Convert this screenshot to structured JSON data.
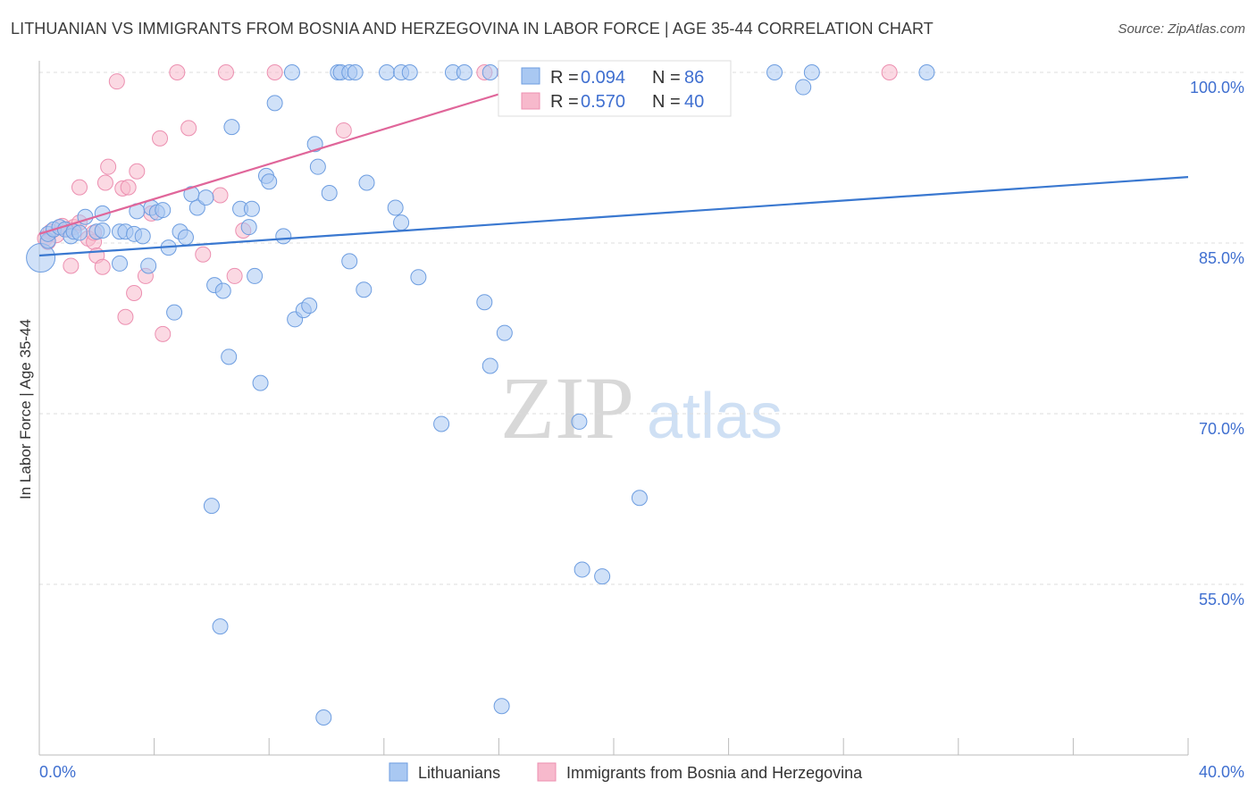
{
  "title": "LITHUANIAN VS IMMIGRANTS FROM BOSNIA AND HERZEGOVINA IN LABOR FORCE | AGE 35-44 CORRELATION CHART",
  "source": "Source: ZipAtlas.com",
  "watermark": {
    "zip": "ZIP",
    "atlas": "atlas"
  },
  "legend": {
    "r_label": "R =",
    "n_label": "N =",
    "rows": [
      {
        "r": "0.094",
        "n": "86",
        "color": "#a9c8f2"
      },
      {
        "r": "0.570",
        "n": "40",
        "color": "#f7b9cc"
      }
    ]
  },
  "bottom_legend": [
    "Lithuanians",
    "Immigrants from Bosnia and Herzegovina"
  ],
  "chart_data": {
    "type": "scatter",
    "title": "LITHUANIAN VS IMMIGRANTS FROM BOSNIA AND HERZEGOVINA IN LABOR FORCE | AGE 35-44 CORRELATION CHART",
    "xlabel": "",
    "ylabel": "In Labor Force | Age 35-44",
    "xlim": [
      0,
      40
    ],
    "ylim": [
      42,
      101.5
    ],
    "x_tick_labels": [
      "0.0%",
      "40.0%"
    ],
    "y_ticks": [
      55,
      70,
      85,
      100
    ],
    "y_tick_labels": [
      "55.0%",
      "70.0%",
      "85.0%",
      "100.0%"
    ],
    "grid": true,
    "series": [
      {
        "name": "Lithuanians",
        "color": "#3a78d0",
        "fill": "#a9c8f2",
        "trend": {
          "x": [
            0,
            40
          ],
          "y": [
            83.9,
            90.8
          ]
        },
        "points": [
          [
            0.05,
            83.7
          ],
          [
            0.3,
            85.2
          ],
          [
            0.3,
            85.8
          ],
          [
            0.5,
            86.2
          ],
          [
            0.7,
            86.4
          ],
          [
            0.9,
            86.2
          ],
          [
            1.1,
            85.6
          ],
          [
            1.2,
            86.0
          ],
          [
            1.4,
            85.9
          ],
          [
            2.0,
            86.0
          ],
          [
            1.6,
            87.3
          ],
          [
            2.2,
            86.1
          ],
          [
            2.2,
            87.6
          ],
          [
            2.8,
            86.0
          ],
          [
            3.0,
            86.0
          ],
          [
            3.3,
            85.8
          ],
          [
            3.4,
            87.8
          ],
          [
            2.8,
            83.2
          ],
          [
            3.6,
            85.6
          ],
          [
            3.8,
            83.0
          ],
          [
            3.9,
            88.1
          ],
          [
            4.1,
            87.7
          ],
          [
            4.3,
            87.9
          ],
          [
            4.5,
            84.6
          ],
          [
            4.7,
            78.9
          ],
          [
            4.9,
            86.0
          ],
          [
            5.1,
            85.5
          ],
          [
            5.3,
            89.3
          ],
          [
            5.5,
            88.1
          ],
          [
            5.8,
            89.0
          ],
          [
            6.0,
            61.9
          ],
          [
            6.3,
            51.3
          ],
          [
            6.1,
            81.3
          ],
          [
            6.4,
            80.8
          ],
          [
            6.6,
            75.0
          ],
          [
            6.7,
            95.2
          ],
          [
            7.0,
            88.0
          ],
          [
            7.3,
            86.4
          ],
          [
            7.4,
            88.0
          ],
          [
            7.5,
            82.1
          ],
          [
            7.7,
            72.7
          ],
          [
            7.9,
            90.9
          ],
          [
            8.0,
            90.4
          ],
          [
            8.2,
            97.3
          ],
          [
            8.5,
            85.6
          ],
          [
            8.8,
            100.0
          ],
          [
            8.9,
            78.3
          ],
          [
            9.2,
            79.1
          ],
          [
            9.4,
            79.5
          ],
          [
            9.6,
            93.7
          ],
          [
            9.7,
            91.7
          ],
          [
            10.1,
            89.4
          ],
          [
            9.9,
            43.3
          ],
          [
            10.4,
            100.0
          ],
          [
            10.5,
            100.0
          ],
          [
            10.8,
            100.0
          ],
          [
            11.0,
            100.0
          ],
          [
            10.8,
            83.4
          ],
          [
            11.3,
            80.9
          ],
          [
            11.4,
            90.3
          ],
          [
            12.1,
            100.0
          ],
          [
            12.4,
            88.1
          ],
          [
            12.6,
            86.8
          ],
          [
            12.6,
            100.0
          ],
          [
            12.9,
            100.0
          ],
          [
            13.2,
            82.0
          ],
          [
            14.0,
            69.1
          ],
          [
            14.4,
            100.0
          ],
          [
            14.8,
            100.0
          ],
          [
            15.5,
            79.8
          ],
          [
            15.7,
            100.0
          ],
          [
            15.7,
            74.2
          ],
          [
            16.1,
            44.3
          ],
          [
            16.2,
            77.1
          ],
          [
            16.6,
            96.9
          ],
          [
            18.8,
            69.3
          ],
          [
            18.9,
            56.3
          ],
          [
            19.6,
            55.7
          ],
          [
            20.9,
            62.6
          ],
          [
            22.6,
            100.0
          ],
          [
            25.6,
            100.0
          ],
          [
            26.6,
            98.7
          ],
          [
            26.9,
            100.0
          ],
          [
            30.9,
            100.0
          ],
          [
            18.5,
            100.0
          ],
          [
            19.0,
            100.0
          ]
        ]
      },
      {
        "name": "Immigrants from Bosnia and Herzegovina",
        "color": "#e0669a",
        "fill": "#f7b9cc",
        "trend": {
          "x": [
            0,
            18.5
          ],
          "y": [
            85.8,
            100.0
          ]
        },
        "points": [
          [
            0.2,
            85.4
          ],
          [
            0.4,
            86.0
          ],
          [
            0.6,
            85.7
          ],
          [
            0.8,
            86.5
          ],
          [
            1.0,
            86.2
          ],
          [
            1.1,
            83.0
          ],
          [
            1.2,
            86.4
          ],
          [
            1.4,
            86.8
          ],
          [
            1.4,
            89.9
          ],
          [
            1.7,
            85.4
          ],
          [
            1.9,
            85.1
          ],
          [
            2.0,
            83.9
          ],
          [
            2.2,
            82.9
          ],
          [
            2.3,
            90.3
          ],
          [
            2.4,
            91.7
          ],
          [
            2.7,
            99.2
          ],
          [
            2.9,
            89.8
          ],
          [
            3.0,
            78.5
          ],
          [
            3.1,
            89.9
          ],
          [
            3.3,
            80.6
          ],
          [
            3.4,
            91.3
          ],
          [
            3.7,
            82.1
          ],
          [
            3.9,
            87.6
          ],
          [
            4.2,
            94.2
          ],
          [
            4.3,
            77.0
          ],
          [
            4.8,
            100.0
          ],
          [
            5.2,
            95.1
          ],
          [
            5.7,
            84.0
          ],
          [
            6.3,
            89.2
          ],
          [
            6.5,
            100.0
          ],
          [
            6.8,
            82.1
          ],
          [
            7.1,
            86.1
          ],
          [
            8.2,
            100.0
          ],
          [
            10.6,
            94.9
          ],
          [
            15.5,
            100.0
          ],
          [
            16.2,
            100.0
          ],
          [
            22.2,
            100.0
          ],
          [
            29.6,
            100.0
          ],
          [
            0.3,
            85.1
          ],
          [
            1.9,
            85.9
          ]
        ]
      }
    ]
  }
}
